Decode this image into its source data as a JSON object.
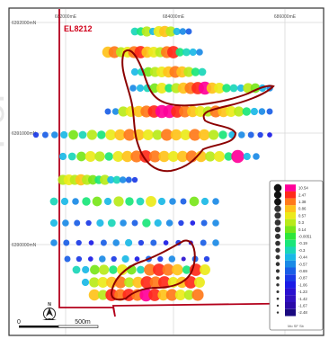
{
  "map": {
    "tenement_label": "EL8212",
    "colors": {
      "tenement_boundary": "#b3001b",
      "anomaly_outline": "#8b0000",
      "grid": "#d8d8d8",
      "frame": "#333333",
      "tenement_label": "#d0021b"
    },
    "easting_labels": [
      "682000mE",
      "684000mE",
      "686000mE"
    ],
    "northing_labels": [
      "6392000mN",
      "6391000mN",
      "6390000mN"
    ],
    "scale_bar": {
      "start_label": "0",
      "end_label": "500m"
    },
    "north_arrow_label": "N",
    "watermark_text": "For"
  },
  "legend": {
    "values": [
      "10.54",
      "2.47",
      "1.38",
      "0.86",
      "0.57",
      "0.3",
      "0.14",
      "-0.0051",
      "-0.19",
      "-0.3",
      "-0.44",
      "-0.57",
      "-0.69",
      "-0.87",
      "-1.06",
      "-1.23",
      "-1.42",
      "-1.67",
      "-2.48"
    ],
    "colors": [
      "#ff0099",
      "#ff2a1a",
      "#ff7a1a",
      "#ffc21a",
      "#ecea1a",
      "#b8ea1a",
      "#78e61a",
      "#2ee63a",
      "#1ae67a",
      "#1ad6b8",
      "#1ab8e6",
      "#1a8ae6",
      "#1a5ee6",
      "#1a3ae6",
      "#1a1ae6",
      "#2a10d0",
      "#3010c0",
      "#2a0aa8",
      "#1a0a80"
    ],
    "caption": "Mo SF Sb"
  },
  "samples": {
    "lines": [
      {
        "values": [
          -0.3,
          -0.19,
          0.3,
          -0.44,
          0.57,
          0.86,
          0.3,
          -0.44,
          -0.57,
          -0.69
        ]
      },
      {
        "values": [
          0.86,
          1.38,
          0.3,
          0.57,
          1.38,
          2.47,
          0.86,
          0.57,
          0.3,
          1.38,
          2.47,
          -0.19,
          -0.3,
          -0.44,
          -0.57
        ]
      },
      {
        "values": [
          -0.44,
          -0.3,
          0.14,
          0.3,
          0.57,
          0.86,
          1.38,
          0.86,
          0.3,
          -0.19,
          -0.3
        ]
      },
      {
        "values": [
          -0.57,
          -0.44,
          -0.3,
          0.14,
          0.57,
          -0.19,
          0.3,
          0.86,
          1.38,
          2.47,
          10.54,
          0.86,
          0.57,
          -0.19,
          -0.3,
          -0.44,
          0.3,
          0.14,
          -0.44,
          -0.57
        ]
      },
      {
        "values": [
          -0.69,
          -0.57,
          0.3,
          0.57,
          0.86,
          1.38,
          2.47,
          10.54,
          10.54,
          2.47,
          1.38,
          0.86,
          0.57,
          0.3,
          1.38,
          0.86,
          0.57,
          0.3,
          -0.19,
          -0.44,
          -0.57,
          -0.69
        ]
      },
      {
        "values": [
          -0.87,
          -0.69,
          -0.57,
          -0.44,
          0.14,
          -0.3,
          0.3,
          -0.19,
          0.57,
          0.86,
          1.38,
          0.86,
          0.57,
          0.3,
          1.38,
          0.86,
          0.57,
          1.38,
          0.86,
          0.3,
          -0.19,
          -0.44,
          -0.57,
          -0.69,
          -0.87,
          -1.06
        ]
      },
      {
        "values": [
          -0.44,
          -0.3,
          0.14,
          0.57,
          0.3,
          -0.19,
          0.57,
          0.86,
          1.38,
          2.47,
          1.38,
          0.86,
          0.57,
          0.86,
          1.38,
          0.86,
          0.3,
          0.57,
          -0.19,
          10.54,
          -0.44,
          -0.57
        ]
      },
      {
        "values": [
          0.3,
          0.57,
          0.3,
          0.86,
          0.3,
          0.14,
          -0.19,
          0.3,
          -0.44,
          -0.3,
          -0.57,
          -0.69,
          -0.87
        ]
      },
      {
        "values": [
          -0.3,
          -0.44,
          -0.57,
          -0.19,
          0.14,
          -0.44,
          0.3,
          -0.19,
          -0.3,
          0.57,
          -0.44,
          -0.57,
          -0.69,
          0.14,
          -0.44,
          -0.57
        ]
      },
      {
        "values": [
          -0.44,
          -0.57,
          -0.69,
          -0.87,
          -0.44,
          -0.3,
          -0.57,
          -0.69,
          -0.19,
          -0.44,
          -0.57,
          -0.87,
          -1.06,
          -0.69,
          -0.57
        ]
      },
      {
        "values": [
          -0.57,
          -0.69,
          -0.87,
          -1.06,
          -0.69,
          -0.57,
          -0.44,
          -0.87,
          -0.69,
          -1.06,
          -0.87,
          -1.23,
          -0.69,
          -0.57
        ]
      },
      {
        "values": [
          -0.69,
          -0.87,
          -1.06,
          -0.57,
          -0.87,
          -0.44,
          -1.06,
          -0.69,
          -0.87,
          -0.57,
          -1.23,
          -0.69,
          -0.87
        ]
      },
      {
        "values": [
          -0.3,
          -0.44,
          0.14,
          0.3,
          -0.19,
          0.57,
          0.14,
          -0.3,
          1.38,
          2.47,
          1.38,
          0.86,
          -0.19,
          2.47,
          0.57
        ]
      },
      {
        "values": [
          -0.44,
          0.3,
          0.57,
          0.86,
          1.38,
          0.3,
          0.86,
          2.47,
          1.38,
          2.47,
          0.57,
          0.86,
          2.47,
          0.57
        ]
      },
      {
        "values": [
          0.86,
          0.3,
          2.47,
          1.38,
          2.47,
          1.38,
          10.54,
          2.47,
          0.86,
          1.38,
          0.57,
          0.3,
          1.38
        ]
      }
    ]
  }
}
